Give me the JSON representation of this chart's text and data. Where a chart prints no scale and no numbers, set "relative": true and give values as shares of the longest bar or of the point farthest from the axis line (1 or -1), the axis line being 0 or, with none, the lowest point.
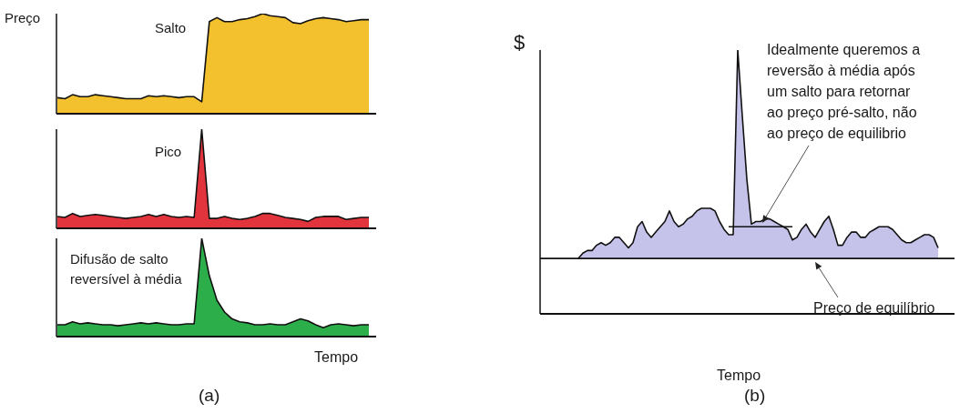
{
  "chart_data": [
    {
      "type": "area",
      "relative": true,
      "ylabel": "Preço",
      "annotations": [
        "Salto"
      ],
      "categories": [
        null,
        null,
        null,
        null,
        null,
        null,
        null,
        null,
        null,
        null,
        null,
        null,
        null,
        null,
        null,
        null,
        null,
        null,
        null,
        null,
        null,
        null,
        null,
        null,
        null,
        null,
        null,
        null,
        null,
        null,
        null,
        null,
        null,
        null,
        null,
        null,
        null,
        null,
        null,
        null,
        null,
        null
      ],
      "color": "#f3c12d",
      "values": [
        0.16,
        0.15,
        0.19,
        0.17,
        0.17,
        0.19,
        0.18,
        0.17,
        0.16,
        0.15,
        0.15,
        0.15,
        0.18,
        0.17,
        0.18,
        0.17,
        0.16,
        0.17,
        0.17,
        0.12,
        0.92,
        0.96,
        0.92,
        0.92,
        0.94,
        0.95,
        0.97,
        1,
        0.98,
        0.97,
        0.96,
        0.91,
        0.9,
        0.93,
        0.95,
        0.96,
        0.95,
        0.94,
        0.92,
        0.93,
        0.94,
        0.94
      ]
    },
    {
      "type": "area",
      "relative": true,
      "annotations": [
        "Pico"
      ],
      "categories": [
        null,
        null,
        null,
        null,
        null,
        null,
        null,
        null,
        null,
        null,
        null,
        null,
        null,
        null,
        null,
        null,
        null,
        null,
        null,
        null,
        null,
        null,
        null,
        null,
        null,
        null,
        null,
        null,
        null,
        null,
        null,
        null,
        null,
        null,
        null,
        null,
        null,
        null,
        null,
        null,
        null,
        null
      ],
      "color": "#e2343c",
      "values": [
        0.12,
        0.11,
        0.15,
        0.12,
        0.13,
        0.14,
        0.13,
        0.12,
        0.11,
        0.1,
        0.11,
        0.12,
        0.14,
        0.12,
        0.14,
        0.12,
        0.11,
        0.12,
        0.11,
        1,
        0.1,
        0.1,
        0.12,
        0.1,
        0.09,
        0.1,
        0.12,
        0.15,
        0.15,
        0.13,
        0.11,
        0.1,
        0.09,
        0.07,
        0.11,
        0.12,
        0.12,
        0.12,
        0.09,
        0.1,
        0.11,
        0.11
      ]
    },
    {
      "type": "area",
      "relative": true,
      "xlabel": "Tempo",
      "annotations": [
        "Difusão de salto reversível à média",
        "(a)"
      ],
      "categories": [
        null,
        null,
        null,
        null,
        null,
        null,
        null,
        null,
        null,
        null,
        null,
        null,
        null,
        null,
        null,
        null,
        null,
        null,
        null,
        null,
        null,
        null,
        null,
        null,
        null,
        null,
        null,
        null,
        null,
        null,
        null,
        null,
        null,
        null,
        null,
        null,
        null,
        null,
        null,
        null,
        null,
        null
      ],
      "color": "#2cae4a",
      "values": [
        0.12,
        0.12,
        0.15,
        0.13,
        0.14,
        0.13,
        0.12,
        0.12,
        0.11,
        0.12,
        0.13,
        0.14,
        0.13,
        0.14,
        0.13,
        0.12,
        0.12,
        0.13,
        0.13,
        1,
        0.62,
        0.37,
        0.25,
        0.18,
        0.15,
        0.14,
        0.12,
        0.12,
        0.13,
        0.12,
        0.12,
        0.15,
        0.18,
        0.16,
        0.12,
        0.09,
        0.12,
        0.13,
        0.12,
        0.11,
        0.12,
        0.12
      ]
    },
    {
      "type": "area",
      "relative": true,
      "ylabel": "$",
      "xlabel": "Tempo",
      "annotations": [
        "Idealmente queremos a reversão à média após um salto para retornar ao preço pré-salto, não ao preço de equilibrio",
        "(b)"
      ],
      "ref_lines": [
        {
          "axis": "y",
          "value": 0.21,
          "label": "Preço de equilíbrio",
          "color": "#111111"
        }
      ],
      "categories": [
        null,
        null,
        null,
        null,
        null,
        null,
        null,
        null,
        null,
        null,
        null,
        null,
        null,
        null,
        null,
        null,
        null,
        null,
        null,
        null,
        null,
        null,
        null,
        null,
        null,
        null,
        null,
        null,
        null,
        null,
        null,
        null,
        null,
        null,
        null,
        null,
        null,
        null,
        null,
        null,
        null,
        null,
        null,
        null,
        null,
        null,
        null,
        null,
        null,
        null,
        null,
        null,
        null,
        null,
        null,
        null,
        null,
        null,
        null,
        null,
        null,
        null,
        null,
        null,
        null,
        null,
        null,
        null,
        null,
        null,
        null,
        null,
        null,
        null,
        null,
        null,
        null,
        null,
        null,
        null
      ],
      "series": [
        {
          "type": "area",
          "color": "#c6c3ea",
          "values": [
            0.21,
            0.23,
            0.24,
            0.24,
            0.26,
            0.27,
            0.26,
            0.27,
            0.29,
            0.29,
            0.27,
            0.25,
            0.27,
            0.33,
            0.35,
            0.31,
            0.29,
            0.31,
            0.33,
            0.35,
            0.39,
            0.35,
            0.33,
            0.34,
            0.36,
            0.37,
            0.39,
            0.4,
            0.4,
            0.4,
            0.39,
            0.35,
            0.32,
            0.3,
            0.3,
            1,
            0.75,
            0.51,
            0.34,
            0.35,
            0.35,
            0.36,
            0.36,
            0.35,
            0.34,
            0.33,
            0.32,
            0.28,
            0.29,
            0.32,
            0.34,
            0.31,
            0.29,
            0.32,
            0.35,
            0.37,
            0.32,
            0.26,
            0.26,
            0.29,
            0.31,
            0.31,
            0.29,
            0.29,
            0.31,
            0.32,
            0.33,
            0.33,
            0.33,
            0.32,
            0.3,
            0.28,
            0.27,
            0.27,
            0.28,
            0.29,
            0.3,
            0.3,
            0.29,
            0.25
          ]
        },
        {
          "type": "line",
          "color": "#111111",
          "values": [
            null,
            null,
            null,
            null,
            null,
            null,
            null,
            null,
            null,
            null,
            null,
            null,
            null,
            null,
            null,
            null,
            null,
            null,
            null,
            null,
            null,
            null,
            null,
            null,
            null,
            null,
            null,
            null,
            null,
            null,
            null,
            null,
            null,
            0.33,
            0.33,
            0.33,
            0.33,
            0.33,
            0.33,
            0.33,
            0.33,
            0.33,
            0.33,
            0.33,
            0.33,
            0.33,
            0.33,
            0.33,
            null,
            null,
            null,
            null,
            null,
            null,
            null,
            null,
            null,
            null,
            null,
            null,
            null,
            null,
            null,
            null,
            null,
            null,
            null,
            null,
            null,
            null,
            null,
            null,
            null,
            null,
            null,
            null,
            null,
            null,
            null,
            null
          ]
        }
      ]
    }
  ]
}
